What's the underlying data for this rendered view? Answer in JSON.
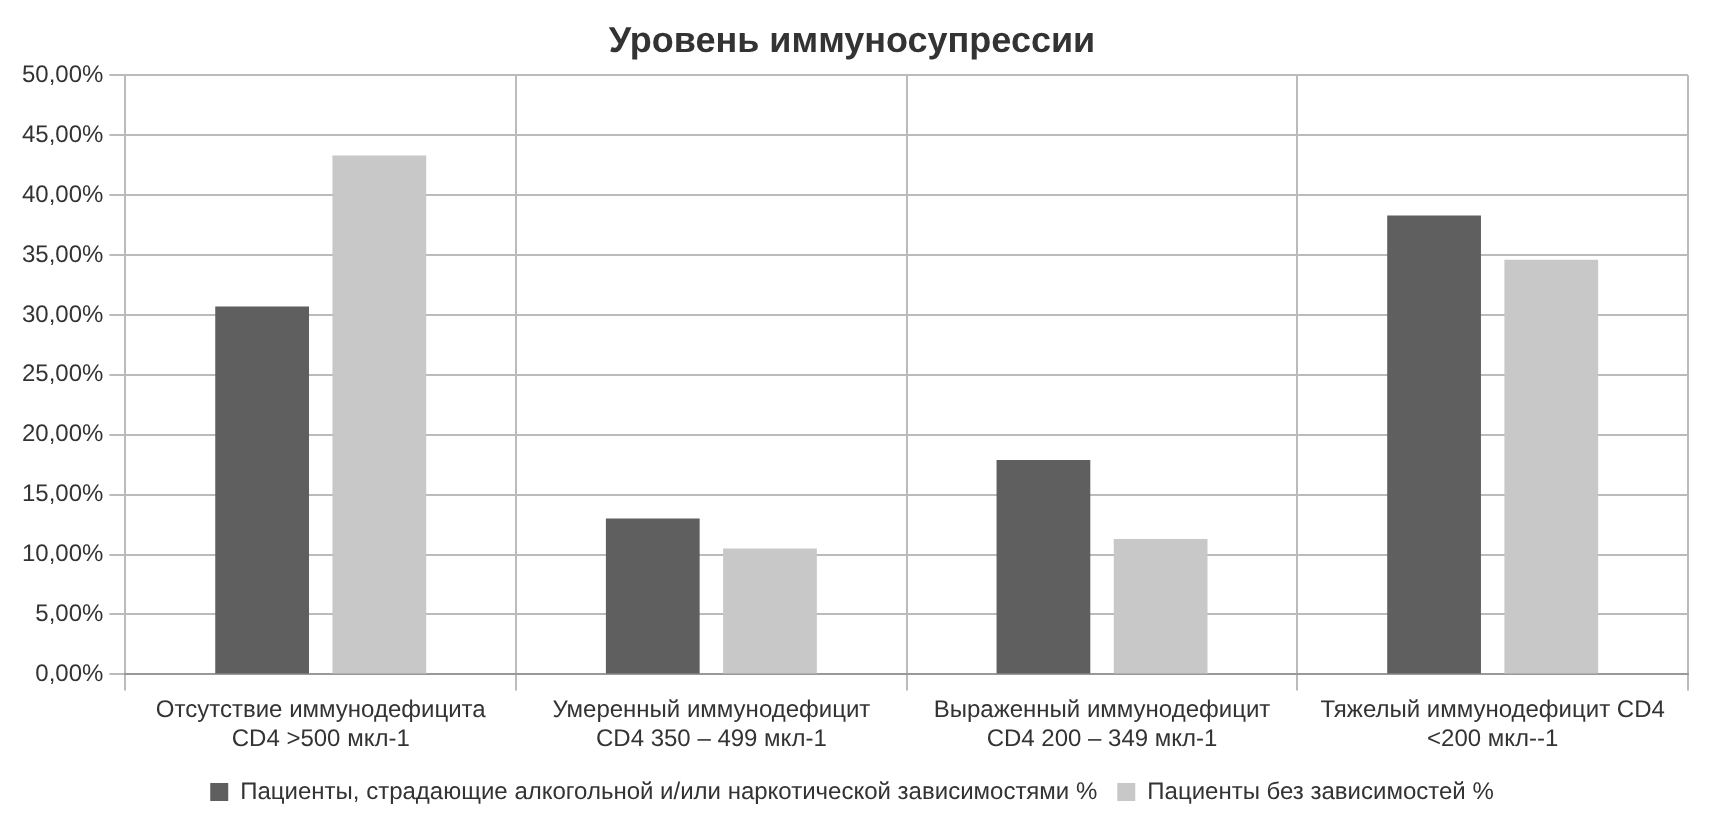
{
  "chart_data": {
    "type": "bar",
    "title": "Уровень иммуносупрессии",
    "categories": [
      "Отсутствие иммунодефицита CD4 >500 мкл-1",
      "Умеренный иммунодефицит CD4 350 – 499 мкл-1",
      "Выраженный иммунодефицит CD4 200 – 349 мкл-1",
      "Тяжелый иммунодефицит CD4 <200 мкл--1"
    ],
    "series": [
      {
        "name": "Пациенты, страдающие алкогольной и/или наркотической зависимостями %",
        "color": "#5f5f5f",
        "values": [
          30.7,
          13.0,
          17.9,
          38.3
        ]
      },
      {
        "name": "Пациенты без зависимостей %",
        "color": "#c8c8c8",
        "values": [
          43.3,
          10.5,
          11.3,
          34.6
        ]
      }
    ],
    "ylim": [
      0,
      50
    ],
    "yticks": [
      {
        "value": 0,
        "label": "0,00%"
      },
      {
        "value": 5,
        "label": "5,00%"
      },
      {
        "value": 10,
        "label": "10,00%"
      },
      {
        "value": 15,
        "label": "15,00%"
      },
      {
        "value": 20,
        "label": "20,00%"
      },
      {
        "value": 25,
        "label": "25,00%"
      },
      {
        "value": 30,
        "label": "30,00%"
      },
      {
        "value": 35,
        "label": "35,00%"
      },
      {
        "value": 40,
        "label": "40,00%"
      },
      {
        "value": 45,
        "label": "45,00%"
      },
      {
        "value": 50,
        "label": "50,00%"
      }
    ],
    "grid": true,
    "legend": "bottom"
  }
}
